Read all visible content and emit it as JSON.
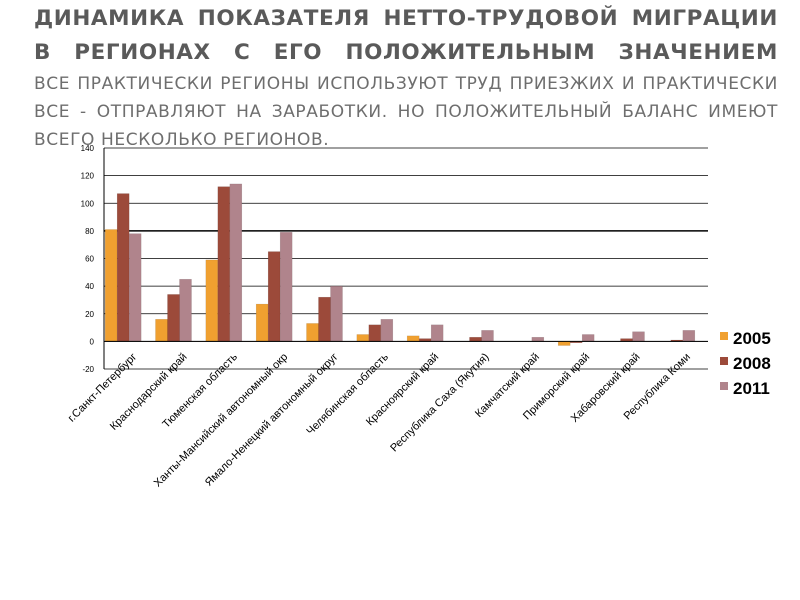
{
  "slide": {
    "title": "Динамика показателя нетто-трудовой миграции в регионах с его положительным значением",
    "subtitle": "Все практически регионы используют труд приезжих и практически все  - отправляют на заработки. Но положительный баланс имеют всего несколько регионов."
  },
  "chart_data": {
    "type": "bar",
    "categories": [
      "г.Санкт-Петербург",
      "Краснодарский край",
      "Тюменская область",
      "Ханты-Мансийский автономный окр",
      "Ямало-Ненецкий автономный округ",
      "Челябинская область",
      "Красноярский край",
      "Республика Саха (Якутия)",
      "Камчатский край",
      "Приморский край",
      "Хабаровский край",
      "Республика Коми"
    ],
    "series": [
      {
        "name": "2005",
        "color": "#F0A030",
        "values": [
          81,
          16,
          59,
          27,
          13,
          5,
          4,
          0,
          0,
          -3,
          0,
          0
        ]
      },
      {
        "name": "2008",
        "color": "#9C4A3A",
        "values": [
          107,
          34,
          112,
          65,
          32,
          12,
          2,
          3,
          0,
          -1,
          2,
          1
        ]
      },
      {
        "name": "2011",
        "color": "#B0848C",
        "values": [
          78,
          45,
          114,
          79,
          40,
          16,
          12,
          8,
          3,
          5,
          7,
          8
        ]
      }
    ],
    "ylim": [
      -20,
      140
    ],
    "yticks": [
      -20,
      0,
      20,
      40,
      60,
      80,
      100,
      120,
      140
    ],
    "grid": true,
    "legend": "right"
  }
}
